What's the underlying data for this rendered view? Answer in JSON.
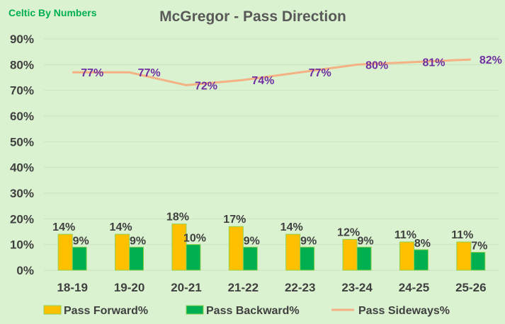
{
  "brand": "Celtic By Numbers",
  "colors": {
    "background": "#daf2d0",
    "forward": "#ffc000",
    "backward": "#00b050",
    "bar_border": "#92d050",
    "sideways": "#f4b183",
    "line_label": "#7030a0",
    "brand": "#00b050"
  },
  "chart_data": {
    "type": "bar",
    "title": "McGregor - Pass Direction",
    "categories": [
      "18-19",
      "19-20",
      "20-21",
      "21-22",
      "22-23",
      "23-24",
      "24-25",
      "25-26"
    ],
    "ylim": [
      0,
      90
    ],
    "yticks": [
      "0%",
      "10%",
      "20%",
      "30%",
      "40%",
      "50%",
      "60%",
      "70%",
      "80%",
      "90%"
    ],
    "grid": true,
    "legend_position": "bottom",
    "series": [
      {
        "name": "Pass Forward%",
        "kind": "bar",
        "values": [
          14,
          14,
          18,
          17,
          14,
          12,
          11,
          11
        ],
        "labels": [
          "14%",
          "14%",
          "18%",
          "17%",
          "14%",
          "12%",
          "11%",
          "11%"
        ]
      },
      {
        "name": "Pass Backward%",
        "kind": "bar",
        "values": [
          9,
          9,
          10,
          9,
          9,
          9,
          8,
          7
        ],
        "labels": [
          "9%",
          "9%",
          "10%",
          "9%",
          "9%",
          "9%",
          "8%",
          "7%"
        ]
      },
      {
        "name": "Pass Sideways%",
        "kind": "line",
        "values": [
          77,
          77,
          72,
          74,
          77,
          80,
          81,
          82
        ],
        "labels": [
          "77%",
          "77%",
          "72%",
          "74%",
          "77%",
          "80%",
          "81%",
          "82%"
        ]
      }
    ]
  }
}
